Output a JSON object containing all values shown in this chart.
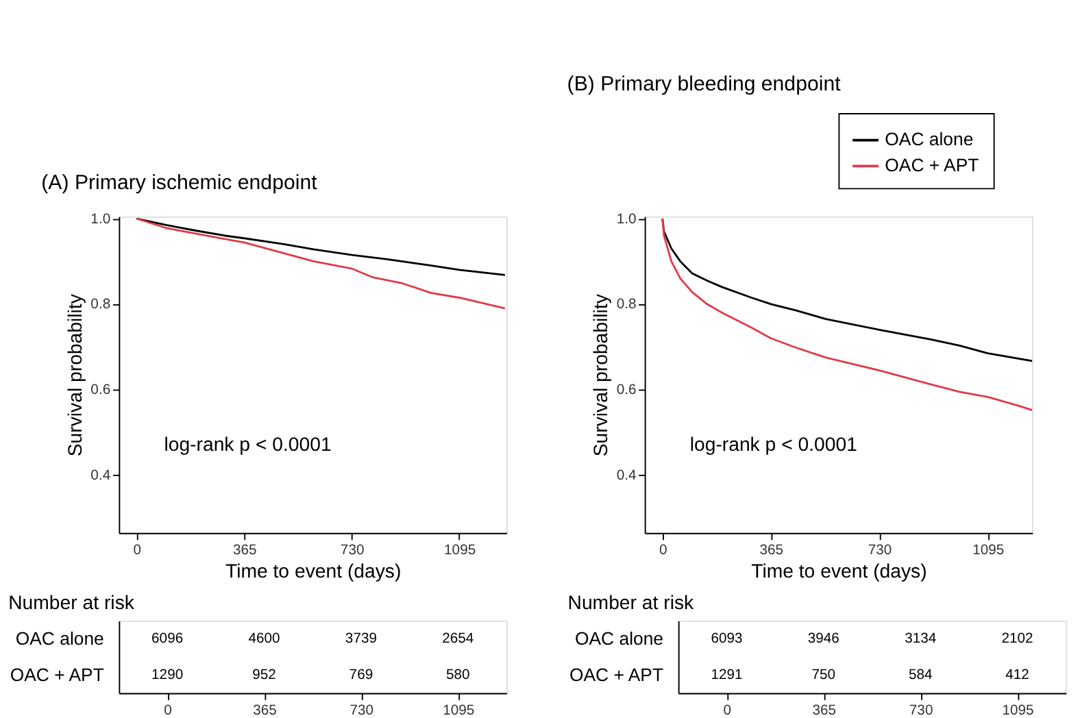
{
  "chart_data": [
    {
      "type": "line",
      "title": "(A) Primary ischemic endpoint",
      "xlabel": "Time to event (days)",
      "ylabel": "Survival probability",
      "xlim": [
        -60,
        1255
      ],
      "xticks": [
        0,
        365,
        730,
        1095
      ],
      "ylim": [
        0.265,
        1.005
      ],
      "yticks": [
        {
          "value": 0.4,
          "label": "0.4"
        },
        {
          "value": 0.6,
          "label": "0.6"
        },
        {
          "value": 0.8,
          "label": "0.8"
        },
        {
          "value": 1.0,
          "label": "1.0"
        }
      ],
      "grid": false,
      "annotations": [
        "log-rank p < 0.0001"
      ],
      "series": [
        {
          "color": "#000000",
          "x": [
            0,
            100,
            200,
            300,
            365,
            500,
            600,
            730,
            850,
            1000,
            1095,
            1250
          ],
          "values": [
            1.0,
            0.985,
            0.972,
            0.96,
            0.954,
            0.94,
            0.928,
            0.915,
            0.905,
            0.89,
            0.88,
            0.868
          ]
        },
        {
          "color": "#e03a4a",
          "x": [
            0,
            100,
            200,
            300,
            365,
            500,
            600,
            730,
            800,
            900,
            1000,
            1095,
            1250
          ],
          "values": [
            1.0,
            0.978,
            0.965,
            0.952,
            0.944,
            0.919,
            0.9,
            0.883,
            0.863,
            0.849,
            0.826,
            0.815,
            0.79
          ]
        }
      ]
    },
    {
      "type": "line",
      "title": "(B) Primary bleeding endpoint",
      "xlabel": "Time to event (days)",
      "ylabel": "Survival probability",
      "xlim": [
        -60,
        1245
      ],
      "xticks": [
        0,
        365,
        730,
        1095
      ],
      "ylim": [
        0.265,
        1.005
      ],
      "yticks": [
        {
          "value": 0.4,
          "label": "0.4"
        },
        {
          "value": 0.6,
          "label": "0.6"
        },
        {
          "value": 0.8,
          "label": "0.8"
        },
        {
          "value": 1.0,
          "label": "1.0"
        }
      ],
      "grid": false,
      "legend": "top right",
      "annotations": [
        "log-rank p < 0.0001"
      ],
      "series": [
        {
          "name": "OAC alone",
          "color": "#000000",
          "x": [
            0,
            5,
            30,
            60,
            100,
            150,
            200,
            300,
            365,
            450,
            550,
            730,
            900,
            1000,
            1095,
            1245
          ],
          "values": [
            1.0,
            0.97,
            0.93,
            0.9,
            0.872,
            0.855,
            0.84,
            0.815,
            0.8,
            0.785,
            0.765,
            0.74,
            0.718,
            0.703,
            0.685,
            0.667
          ]
        },
        {
          "name": "OAC + APT",
          "color": "#e03a4a",
          "x": [
            0,
            5,
            30,
            60,
            100,
            150,
            200,
            300,
            365,
            450,
            550,
            730,
            900,
            1000,
            1095,
            1200,
            1245
          ],
          "values": [
            1.0,
            0.96,
            0.9,
            0.86,
            0.828,
            0.8,
            0.78,
            0.745,
            0.72,
            0.698,
            0.675,
            0.645,
            0.613,
            0.595,
            0.583,
            0.562,
            0.552
          ]
        }
      ]
    },
    {
      "type": "heatmap",
      "title": "Number at risk",
      "categories": [
        "0",
        "365",
        "730",
        "1095"
      ],
      "y_categories": [
        "OAC alone",
        "OAC + APT"
      ],
      "data_labels": true,
      "cells": [
        [
          6096,
          4600,
          3739,
          2654
        ],
        [
          1290,
          952,
          769,
          580
        ]
      ]
    },
    {
      "type": "heatmap",
      "title": "Number at risk",
      "categories": [
        "0",
        "365",
        "730",
        "1095"
      ],
      "y_categories": [
        "OAC alone",
        "OAC + APT"
      ],
      "data_labels": true,
      "cells": [
        [
          6093,
          3946,
          3134,
          2102
        ],
        [
          1291,
          750,
          584,
          412
        ]
      ]
    }
  ]
}
